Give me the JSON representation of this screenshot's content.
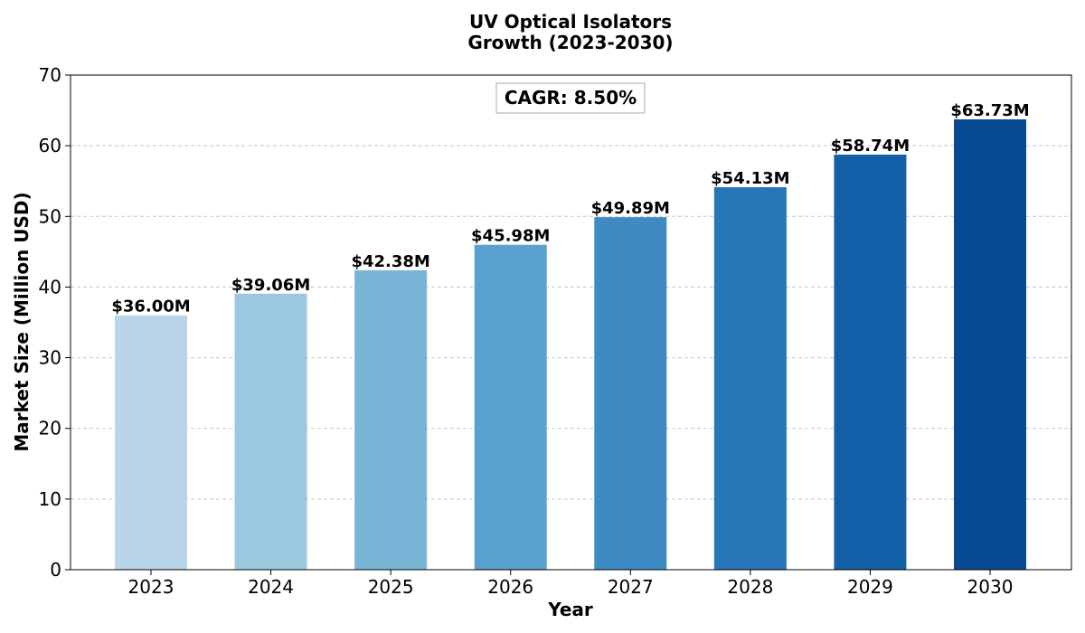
{
  "chart_data": {
    "type": "bar",
    "title_lines": [
      "UV Optical Isolators",
      "Growth (2023-2030)"
    ],
    "xlabel": "Year",
    "ylabel": "Market Size (Million USD)",
    "categories": [
      "2023",
      "2024",
      "2025",
      "2026",
      "2027",
      "2028",
      "2029",
      "2030"
    ],
    "values": [
      36.0,
      39.06,
      42.38,
      45.98,
      49.89,
      54.13,
      58.74,
      63.73
    ],
    "value_labels": [
      "$36.00M",
      "$39.06M",
      "$42.38M",
      "$45.98M",
      "$49.89M",
      "$54.13M",
      "$58.74M",
      "$63.73M"
    ],
    "bar_colors": [
      "#b9d5ea",
      "#9bc8df",
      "#79b5d7",
      "#5aa2ce",
      "#3e8bc3",
      "#2776b8",
      "#1460a8",
      "#084a91"
    ],
    "ylim": [
      0,
      70
    ],
    "yticks": [
      "0",
      "10",
      "20",
      "30",
      "40",
      "50",
      "60",
      "70"
    ],
    "grid": "horizontal dashed",
    "annotation": "CAGR: 8.50%"
  }
}
